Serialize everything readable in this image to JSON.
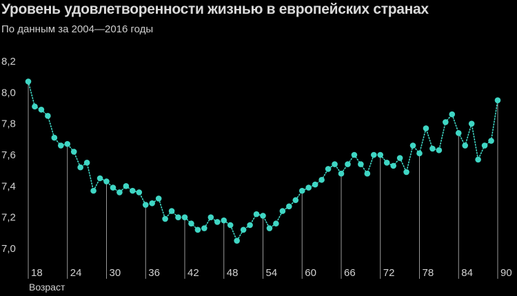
{
  "title": "Уровень удовлетворенности жизнью в европейских странах",
  "subtitle": "По данным за 2004—2016 годы",
  "colors": {
    "background": "#000000",
    "line": "#3fd6c4",
    "point": "#3fd6c4",
    "drop_line": "#9a9a9a",
    "text": "#d2d2d2"
  },
  "chart_data": {
    "type": "line",
    "title": "Уровень удовлетворенности жизнью в европейских странах",
    "subtitle": "По данным за 2004—2016 годы",
    "xlabel": "Возраст",
    "ylabel": "",
    "xlim": [
      17,
      91
    ],
    "ylim": [
      7.0,
      8.2
    ],
    "x_ticks": [
      18,
      24,
      30,
      36,
      42,
      48,
      54,
      60,
      66,
      72,
      78,
      84,
      90
    ],
    "y_ticks": [
      7.0,
      7.2,
      7.4,
      7.6,
      7.8,
      8.0,
      8.2
    ],
    "y_tick_labels": [
      "7,0",
      "7,2",
      "7,4",
      "7,6",
      "7,8",
      "8,0",
      "8,2"
    ],
    "grid": false,
    "line_style": "dotted",
    "series": [
      {
        "x": [
          18,
          19,
          20,
          21,
          22,
          23,
          24,
          25,
          26,
          27,
          28,
          29,
          30,
          31,
          32,
          33,
          34,
          35,
          36,
          37,
          38,
          39,
          40,
          41,
          42,
          43,
          44,
          45,
          46,
          47,
          48,
          49,
          50,
          51,
          52,
          53,
          54,
          55,
          56,
          57,
          58,
          59,
          60,
          61,
          62,
          63,
          64,
          65,
          66,
          67,
          68,
          69,
          70,
          71,
          72,
          73,
          74,
          75,
          76,
          77,
          78,
          79,
          80,
          81,
          82,
          83,
          84,
          85,
          86,
          87,
          88,
          89,
          90
        ],
        "values": [
          8.07,
          7.91,
          7.89,
          7.85,
          7.71,
          7.66,
          7.67,
          7.62,
          7.52,
          7.55,
          7.37,
          7.45,
          7.43,
          7.39,
          7.36,
          7.4,
          7.37,
          7.36,
          7.28,
          7.29,
          7.32,
          7.19,
          7.24,
          7.2,
          7.2,
          7.16,
          7.12,
          7.13,
          7.2,
          7.17,
          7.18,
          7.15,
          7.05,
          7.12,
          7.15,
          7.22,
          7.21,
          7.13,
          7.16,
          7.24,
          7.27,
          7.31,
          7.37,
          7.39,
          7.41,
          7.44,
          7.51,
          7.54,
          7.48,
          7.54,
          7.6,
          7.54,
          7.48,
          7.6,
          7.6,
          7.55,
          7.53,
          7.58,
          7.49,
          7.66,
          7.61,
          7.77,
          7.64,
          7.63,
          7.81,
          7.86,
          7.74,
          7.66,
          7.8,
          7.57,
          7.66,
          7.69,
          7.95
        ]
      }
    ],
    "drop_lines_at": [
      18,
      24,
      30,
      36,
      42,
      48,
      54,
      60,
      66,
      72,
      78,
      84,
      90
    ]
  }
}
